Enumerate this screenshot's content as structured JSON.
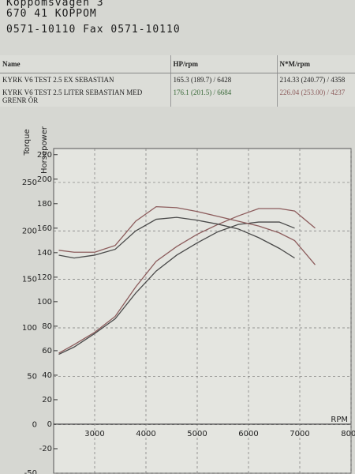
{
  "header": {
    "lines": [
      "Koppomsvägen 3",
      "670 41 KOPPOM",
      "0571-10110 Fax 0571-10110"
    ]
  },
  "table": {
    "columns": [
      "Name",
      "HP/rpm",
      "N*M/rpm"
    ],
    "rows": [
      [
        "KYRK V6 TEST 2.5 EX SEBASTIAN",
        "165.3 (189.7) / 6428",
        "214.33 (240.77) / 4358"
      ],
      [
        "KYRK V6 TEST 2.5 LITER SEBASTIAN MED GRENR ÖR",
        "176.1 (201.5) / 6684",
        "226.04 (253.00) / 4237"
      ]
    ]
  },
  "chart_data": {
    "type": "line",
    "xlabel": "RPM",
    "ylabel": "Horsepower",
    "y2label": "Torque",
    "x": [
      2300,
      2600,
      3000,
      3400,
      3800,
      4200,
      4600,
      5000,
      5400,
      5800,
      6200,
      6600,
      6900,
      7300
    ],
    "xlim": [
      2200,
      8000
    ],
    "xticks": [
      3000,
      4000,
      5000,
      6000,
      7000,
      8000
    ],
    "ylim": [
      -40,
      225
    ],
    "yticks": [
      -20,
      0,
      20,
      40,
      60,
      80,
      100,
      120,
      140,
      160,
      180,
      200,
      220
    ],
    "y2lim": [
      -50,
      285
    ],
    "y2ticks": [
      -50,
      0,
      50,
      100,
      150,
      200,
      250
    ],
    "grid": true,
    "series": [
      {
        "color": "#4a4a4a",
        "values": [
          57,
          63,
          74,
          86,
          107,
          125,
          138,
          148,
          157,
          163,
          165,
          165,
          160,
          null
        ]
      },
      {
        "color": "#8c5c5c",
        "values": [
          58,
          65,
          75,
          88,
          112,
          133,
          145,
          155,
          163,
          170,
          176,
          176,
          174,
          160
        ]
      },
      {
        "color": "#4a4a4a",
        "axis": "y2",
        "values": [
          175,
          172,
          175,
          181,
          200,
          212,
          214,
          211,
          207,
          202,
          193,
          182,
          172,
          null
        ]
      },
      {
        "color": "#8c5c5c",
        "axis": "y2",
        "values": [
          180,
          178,
          178,
          185,
          210,
          225,
          224,
          220,
          215,
          210,
          205,
          198,
          190,
          165
        ]
      }
    ]
  }
}
